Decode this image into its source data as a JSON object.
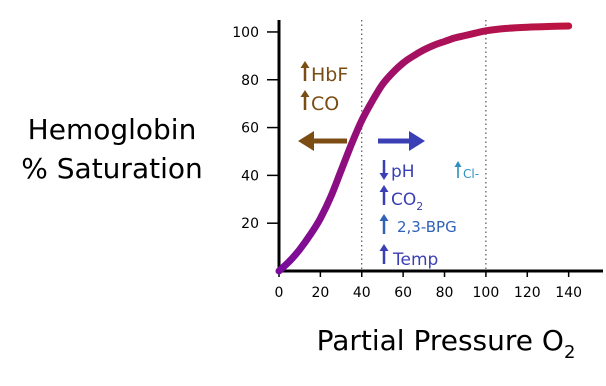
{
  "chart_data": {
    "type": "line",
    "title": "",
    "ylabel_lines": [
      "Hemoglobin",
      "% Saturation"
    ],
    "xlabel": {
      "text": "Partial Pressure O",
      "sub": "2"
    },
    "xlim": [
      0,
      145
    ],
    "ylim": [
      0,
      105
    ],
    "xticks": [
      0,
      20,
      40,
      60,
      80,
      100,
      120,
      140
    ],
    "yticks": [
      20,
      40,
      60,
      80,
      100
    ],
    "reference_lines_x": [
      40,
      100
    ],
    "series": [
      {
        "x": [
          0,
          5,
          10,
          15,
          20,
          25,
          30,
          35,
          40,
          45,
          50,
          55,
          60,
          65,
          70,
          75,
          80,
          85,
          90,
          95,
          100,
          110,
          120,
          130,
          140
        ],
        "y": [
          0,
          4,
          9,
          15,
          22,
          31,
          42,
          53,
          63,
          71,
          78,
          83,
          87,
          90,
          92.5,
          94.5,
          96,
          97.5,
          98.5,
          99.5,
          100.5,
          101.5,
          102,
          102.3,
          102.5
        ]
      }
    ],
    "annotations": {
      "left": [
        {
          "arrow": "up",
          "text": "HbF",
          "sub": ""
        },
        {
          "arrow": "up",
          "text": "CO",
          "sub": ""
        }
      ],
      "right": [
        {
          "arrow": "down",
          "text": "pH",
          "sub": ""
        },
        {
          "arrow": "up",
          "text": "CO",
          "sub": "2"
        },
        {
          "arrow": "up",
          "text": "2,3-BPG",
          "sub": ""
        },
        {
          "arrow": "up",
          "text": "Temp",
          "sub": ""
        }
      ],
      "extra": {
        "arrow": "up",
        "text": "Cl-"
      }
    },
    "colors": {
      "curve_start": "#7a0b9b",
      "curve_end": "#c0143c",
      "left_shift": "#7b4d14",
      "right_shift": "#3b3fb6",
      "right_shift_2": "#2f8fc0"
    }
  }
}
